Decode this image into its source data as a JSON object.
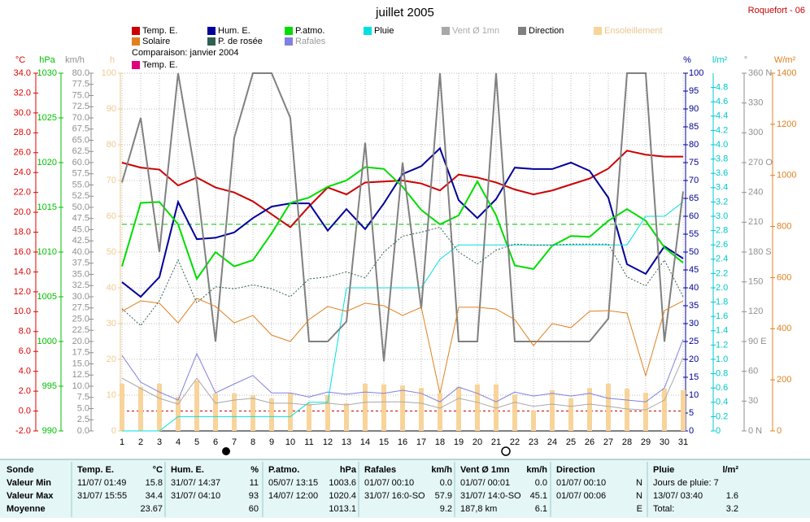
{
  "chart_data": {
    "type": "line",
    "title": "juillet 2005",
    "station": "Roquefort - 06",
    "x": [
      1,
      2,
      3,
      4,
      5,
      6,
      7,
      8,
      9,
      10,
      11,
      12,
      13,
      14,
      15,
      16,
      17,
      18,
      19,
      20,
      21,
      22,
      23,
      24,
      25,
      26,
      27,
      28,
      29,
      30,
      31
    ],
    "xlim": [
      1,
      31
    ],
    "xticks": [
      1,
      2,
      3,
      4,
      5,
      6,
      7,
      8,
      9,
      10,
      11,
      12,
      13,
      14,
      15,
      16,
      17,
      18,
      19,
      20,
      21,
      22,
      23,
      24,
      25,
      26,
      27,
      28,
      29,
      30,
      31
    ],
    "grid": true,
    "axes": [
      {
        "id": "temp",
        "unit": "°C",
        "color": "#e00000",
        "ylim": [
          -2,
          34
        ],
        "yticks": [
          {
            "value": -2,
            "label": "-2.0"
          },
          {
            "value": 0,
            "label": "0.0"
          },
          {
            "value": 2,
            "label": "2.0"
          },
          {
            "value": 4,
            "label": "4.0"
          },
          {
            "value": 6,
            "label": "6.0"
          },
          {
            "value": 8,
            "label": "8.0"
          },
          {
            "value": 10,
            "label": "10.0"
          },
          {
            "value": 12,
            "label": "12.0"
          },
          {
            "value": 14,
            "label": "14.0"
          },
          {
            "value": 16,
            "label": "16.0"
          },
          {
            "value": 18,
            "label": "18.0"
          },
          {
            "value": 20,
            "label": "20.0"
          },
          {
            "value": 22,
            "label": "22.0"
          },
          {
            "value": 24,
            "label": "24.0"
          },
          {
            "value": 26,
            "label": "26.0"
          },
          {
            "value": 28,
            "label": "28.0"
          },
          {
            "value": 30,
            "label": "30.0"
          },
          {
            "value": 32,
            "label": "32.0"
          },
          {
            "value": 34,
            "label": "34.0"
          }
        ]
      },
      {
        "id": "patmo",
        "unit": "hPa",
        "color": "#00c000",
        "ylim": [
          990,
          1030
        ],
        "yticks": [
          990,
          995,
          1000,
          1005,
          1010,
          1015,
          1020,
          1025,
          1030
        ]
      },
      {
        "id": "wind",
        "unit": "km/h",
        "color": "#909090",
        "ylim": [
          0,
          80
        ],
        "yticks": [
          {
            "value": 0,
            "label": "0.0"
          },
          {
            "value": 2.5,
            "label": "2.5"
          },
          {
            "value": 5,
            "label": "5.0"
          },
          {
            "value": 7.5,
            "label": "7.5"
          },
          {
            "value": 10,
            "label": "10.0"
          },
          {
            "value": 12.5,
            "label": "12.5"
          },
          {
            "value": 15,
            "label": "15.0"
          },
          {
            "value": 17.5,
            "label": "17.5"
          },
          {
            "value": 20,
            "label": "20.0"
          },
          {
            "value": 22.5,
            "label": "22.5"
          },
          {
            "value": 25,
            "label": "25.0"
          },
          {
            "value": 27.5,
            "label": "27.5"
          },
          {
            "value": 30,
            "label": "30.0"
          },
          {
            "value": 32.5,
            "label": "32.5"
          },
          {
            "value": 35,
            "label": "35.0"
          },
          {
            "value": 37.5,
            "label": "37.5"
          },
          {
            "value": 40,
            "label": "40.0"
          },
          {
            "value": 42.5,
            "label": "42.5"
          },
          {
            "value": 45,
            "label": "45.0"
          },
          {
            "value": 47.5,
            "label": "47.5"
          },
          {
            "value": 50,
            "label": "50.0"
          },
          {
            "value": 52.5,
            "label": "52.5"
          },
          {
            "value": 55,
            "label": "55.0"
          },
          {
            "value": 57.5,
            "label": "57.5"
          },
          {
            "value": 60,
            "label": "60.0"
          },
          {
            "value": 62.5,
            "label": "62.5"
          },
          {
            "value": 65,
            "label": "65.0"
          },
          {
            "value": 67.5,
            "label": "67.5"
          },
          {
            "value": 70,
            "label": "70.0"
          },
          {
            "value": 72.5,
            "label": "72.5"
          },
          {
            "value": 75,
            "label": "75.0"
          },
          {
            "value": 77.5,
            "label": "77.5"
          },
          {
            "value": 80,
            "label": "80.0"
          }
        ]
      },
      {
        "id": "sun",
        "unit": "h",
        "color": "#f0c890",
        "ylim": [
          0,
          100
        ],
        "yticks": [
          0,
          10,
          20,
          30,
          40,
          50,
          60,
          70,
          80,
          90,
          100
        ]
      },
      {
        "id": "hum",
        "unit": "%",
        "color": "#000099",
        "ylim": [
          0,
          100
        ],
        "yticks": [
          0,
          5,
          10,
          15,
          20,
          25,
          30,
          35,
          40,
          45,
          50,
          55,
          60,
          65,
          70,
          75,
          80,
          85,
          90,
          95,
          100
        ]
      },
      {
        "id": "rain",
        "unit": "l/m²",
        "color": "#00c8c8",
        "ylim": [
          0,
          5
        ],
        "yticks": [
          0,
          0.2,
          0.4,
          0.6,
          0.8,
          {
            "value": 1,
            "label": "1.0"
          },
          1.2,
          1.4,
          1.6,
          1.8,
          {
            "value": 2,
            "label": "2.0"
          },
          2.2,
          2.4,
          2.6,
          2.8,
          {
            "value": 3,
            "label": "3.0"
          },
          3.2,
          3.4,
          3.6,
          3.8,
          {
            "value": 4,
            "label": "4.0"
          },
          4.2,
          4.4,
          4.6,
          4.8
        ]
      },
      {
        "id": "dir",
        "unit": "°",
        "color": "#909090",
        "ylim": [
          0,
          360
        ],
        "yticks": [
          {
            "value": 0,
            "label": "0  N"
          },
          30,
          60,
          {
            "value": 90,
            "label": "90  E"
          },
          120,
          150,
          {
            "value": 180,
            "label": "180 S"
          },
          210,
          240,
          {
            "value": 270,
            "label": "270 O"
          },
          300,
          330,
          {
            "value": 360,
            "label": "360 N"
          }
        ]
      },
      {
        "id": "solar",
        "unit": "W/m²",
        "color": "#e08020",
        "ylim": [
          0,
          1400
        ],
        "yticks": [
          0,
          200,
          400,
          600,
          800,
          1000,
          1200,
          1400
        ]
      }
    ],
    "series": [
      {
        "name": "Temp. E.",
        "color": "#cc0000",
        "axis": "temp",
        "style": "line",
        "values": [
          25.0,
          24.5,
          24.3,
          22.7,
          23.5,
          22.5,
          22.0,
          21.1,
          19.8,
          18.5,
          20.6,
          22.5,
          21.8,
          23.0,
          23.1,
          23.2,
          22.9,
          22.2,
          23.8,
          23.5,
          23.0,
          22.3,
          21.8,
          22.2,
          22.8,
          23.4,
          24.4,
          26.2,
          25.8,
          25.6,
          25.6
        ]
      },
      {
        "name": "Hum. E.",
        "color": "#000099",
        "axis": "hum",
        "style": "line",
        "values": [
          41.6,
          37.5,
          43,
          64,
          53.6,
          54,
          55.5,
          59.5,
          62.7,
          63.6,
          63.6,
          56,
          62,
          56.4,
          63.6,
          71.8,
          74,
          79,
          64.5,
          59.5,
          64.8,
          73.6,
          73.2,
          73.2,
          75,
          72.7,
          65.2,
          46.6,
          43.9,
          51.6,
          48.2
        ]
      },
      {
        "name": "P.atmo.",
        "color": "#00dd00",
        "axis": "patmo",
        "style": "line",
        "values": [
          1008.4,
          1015.5,
          1015.6,
          1013.1,
          1007,
          1010,
          1008.4,
          1009.1,
          1012.1,
          1015.5,
          1016.1,
          1017.3,
          1018.0,
          1019.5,
          1019.3,
          1017.3,
          1014.7,
          1013.1,
          1014.1,
          1017.9,
          1014.1,
          1008.5,
          1008.1,
          1010.7,
          1011.8,
          1011.7,
          1013.5,
          1014.8,
          1013.5,
          1010.5,
          1008.8
        ]
      },
      {
        "name": "Pluie",
        "color": "#00e0e0",
        "axis": "rain",
        "style": "thin",
        "values": [
          0,
          0,
          0,
          0.2,
          0.2,
          0.2,
          0.2,
          0.2,
          0.2,
          0.2,
          0.4,
          0.4,
          2.0,
          2.0,
          2.0,
          2.0,
          2.0,
          2.4,
          2.6,
          2.6,
          2.6,
          2.6,
          2.6,
          2.6,
          2.6,
          2.6,
          2.6,
          2.6,
          3.0,
          3.0,
          3.2
        ]
      },
      {
        "name": "Vent Ø 1mn",
        "color": "#a8a8a8",
        "axis": "wind",
        "style": "thin",
        "values": [
          11.8,
          9.5,
          7.3,
          6.0,
          11.8,
          6.2,
          6.9,
          7.3,
          6.2,
          6.2,
          5.8,
          6.2,
          5.8,
          6.4,
          6.5,
          6.5,
          6.2,
          5.1,
          7.3,
          6.4,
          5.1,
          6.4,
          5.5,
          6.0,
          5.5,
          6.0,
          5.5,
          4.9,
          4.7,
          6.9,
          16.4
        ]
      },
      {
        "name": "Direction",
        "color": "#808080",
        "axis": "dir",
        "style": "line",
        "values": [
          250,
          315,
          180,
          360,
          250,
          90,
          295,
          360,
          360,
          315,
          90,
          90,
          110,
          290,
          70,
          270,
          123,
          360,
          90,
          90,
          360,
          90,
          90,
          90,
          90,
          90,
          113,
          360,
          360,
          90,
          241
        ]
      },
      {
        "name": "Ensoleillement",
        "color": "#f8d49a",
        "axis": "sun",
        "style": "bar",
        "values": [
          13.2,
          12.3,
          13.2,
          9.5,
          14.1,
          10.5,
          10.5,
          10.0,
          9.1,
          10.5,
          7.7,
          10.0,
          7.7,
          13.2,
          13.0,
          12.7,
          12.0,
          10.5,
          12.3,
          13.0,
          13.0,
          10.2,
          5.7,
          11.4,
          9.1,
          12.0,
          13.2,
          11.8,
          10.7,
          11.8,
          11.4
        ]
      },
      {
        "name": "Solaire",
        "color": "#e08020",
        "axis": "solar",
        "style": "thin",
        "values": [
          468,
          509,
          500,
          423,
          519,
          487,
          423,
          452,
          375,
          350,
          436,
          487,
          468,
          500,
          490,
          452,
          484,
          146,
          484,
          484,
          477,
          436,
          334,
          420,
          404,
          468,
          471,
          461,
          216,
          471,
          509
        ]
      },
      {
        "name": "P. de rosée",
        "color": "#306050",
        "axis": "temp",
        "style": "dashed",
        "values": [
          10.3,
          8.6,
          11.1,
          15.2,
          10.9,
          12.5,
          12.3,
          12.7,
          12.3,
          11.5,
          13.3,
          13.5,
          14.0,
          13.4,
          16.0,
          17.6,
          18.0,
          18.5,
          16.0,
          14.8,
          16.2,
          16.8,
          16.7,
          16.7,
          16.8,
          16.8,
          16.8,
          13.5,
          12.6,
          15.2,
          11.5
        ]
      },
      {
        "name": "Rafales",
        "color": "#8080e0",
        "axis": "wind",
        "style": "thin",
        "values": [
          16.9,
          10.9,
          8.7,
          6.9,
          17.3,
          8.5,
          10.5,
          12.4,
          8.5,
          8.5,
          7.6,
          8.7,
          8.2,
          8.7,
          8.4,
          9.1,
          8.4,
          6.5,
          9.8,
          8.4,
          6.5,
          8.7,
          7.8,
          8.4,
          7.8,
          8.4,
          7.3,
          6.9,
          6.5,
          9.6,
          20.5
        ]
      }
    ],
    "comparison": {
      "label": "Comparaison: janvier 2004",
      "name": "Temp. E.",
      "color": "#e0007a"
    }
  },
  "table": {
    "corner": "Sonde",
    "row_labels": [
      "Valeur Min",
      "Valeur Max",
      "Moyenne"
    ],
    "columns": [
      {
        "name": "Temp. E.",
        "unit": "°C",
        "min": [
          "11/07/ 01:49",
          "15.8"
        ],
        "max": [
          "31/07/ 15:55",
          "34.4"
        ],
        "mean": [
          "23.67"
        ]
      },
      {
        "name": "Hum. E.",
        "unit": "%",
        "min": [
          "31/07/ 14:37",
          "11"
        ],
        "max": [
          "31/07/ 04:10",
          "93"
        ],
        "mean": [
          "60"
        ]
      },
      {
        "name": "P.atmo.",
        "unit": "hPa",
        "min": [
          "05/07/ 13:15",
          "1003.6"
        ],
        "max": [
          "14/07/ 12:00",
          "1020.4"
        ],
        "mean": [
          "1013.1"
        ]
      },
      {
        "name": "Rafales",
        "unit": "km/h",
        "min": [
          "01/07/ 00:10",
          "0.0"
        ],
        "max": [
          "31/07/ 16:0-SO",
          "57.9"
        ],
        "mean": [
          "9.2"
        ]
      },
      {
        "name": "Vent Ø 1mn",
        "unit": "km/h",
        "min": [
          "01/07/ 00:01",
          "0.0"
        ],
        "max": [
          "31/07/ 14:0-SO",
          "45.1"
        ],
        "mean": [
          "187,8 km",
          "6.1"
        ]
      },
      {
        "name": "Direction",
        "min": [
          "01/07/ 00:10",
          "N"
        ],
        "max": [
          "01/07/ 00:06",
          "N"
        ],
        "mean": [
          "E"
        ]
      },
      {
        "name": "Pluie",
        "unit": "l/m²",
        "min": [
          "Jours de pluie: 7"
        ],
        "max": [
          "13/07/ 03:40",
          "1.6"
        ],
        "mean": [
          "Total:",
          "3.2"
        ]
      }
    ]
  }
}
